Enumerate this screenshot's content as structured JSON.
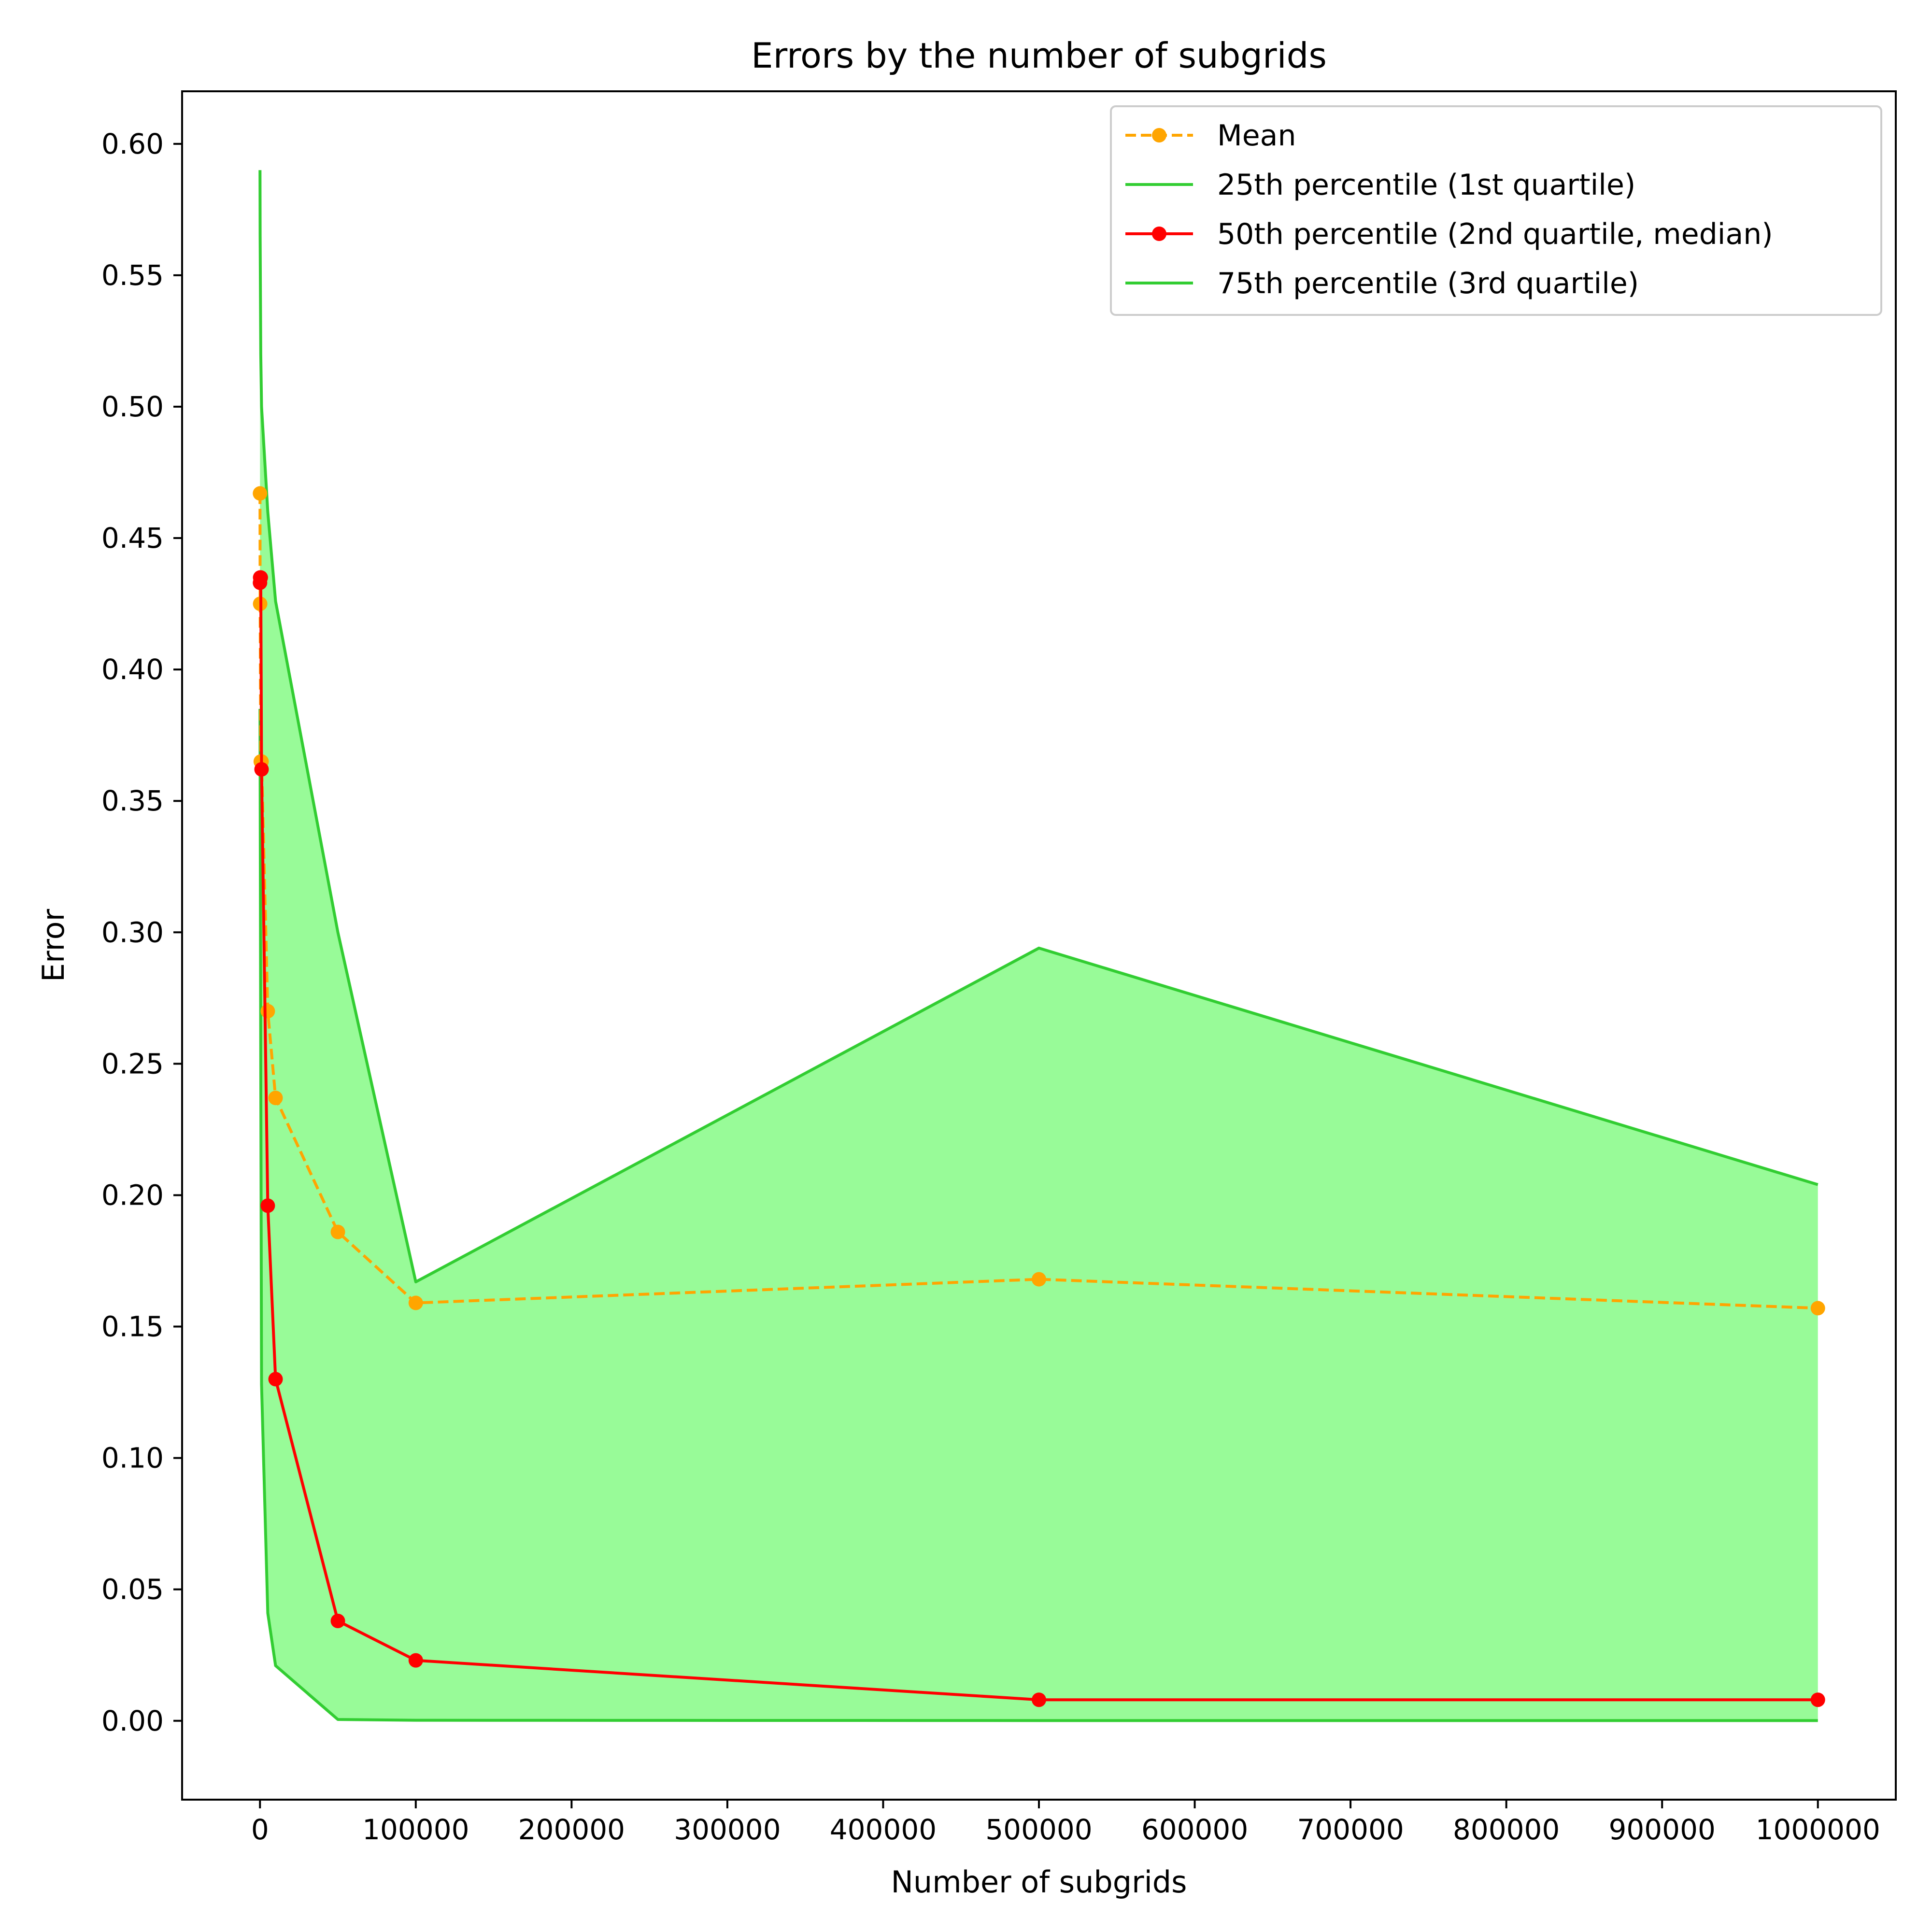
{
  "chart_data": {
    "type": "line",
    "title": "Errors by the number of subgrids",
    "xlabel": "Number of subgrids",
    "ylabel": "Error",
    "xlim": [
      -50000,
      1050000
    ],
    "ylim": [
      -0.03,
      0.62
    ],
    "x_ticks": [
      0,
      100000,
      200000,
      300000,
      400000,
      500000,
      600000,
      700000,
      800000,
      900000,
      1000000
    ],
    "y_ticks": [
      0.0,
      0.05,
      0.1,
      0.15,
      0.2,
      0.25,
      0.3,
      0.35,
      0.4,
      0.45,
      0.5,
      0.55,
      0.6
    ],
    "x": [
      10,
      100,
      500,
      1000,
      5000,
      10000,
      50000,
      100000,
      500000,
      1000000
    ],
    "grid": false,
    "legend_position": "upper-right",
    "series": [
      {
        "name": "Mean",
        "style": "dashed-markers",
        "color": "#ffa500",
        "values": [
          0.467,
          0.425,
          0.365,
          0.365,
          0.27,
          0.237,
          0.186,
          0.159,
          0.168,
          0.157
        ]
      },
      {
        "name": "25th percentile (1st quartile)",
        "style": "line",
        "color": "#32cd32",
        "values": [
          0.385,
          0.36,
          0.25,
          0.128,
          0.041,
          0.021,
          0.0005,
          0.0002,
          0.0001,
          0.0001
        ]
      },
      {
        "name": "50th percentile (2nd quartile, median)",
        "style": "solid-markers",
        "color": "#ff0000",
        "values": [
          0.433,
          0.435,
          0.435,
          0.362,
          0.196,
          0.13,
          0.038,
          0.023,
          0.008,
          0.008
        ]
      },
      {
        "name": "75th percentile (3rd quartile)",
        "style": "line",
        "color": "#32cd32",
        "values": [
          0.59,
          0.565,
          0.52,
          0.5,
          0.46,
          0.426,
          0.3,
          0.167,
          0.294,
          0.204
        ]
      }
    ],
    "fill_between": {
      "lower": "25th percentile (1st quartile)",
      "upper": "75th percentile (3rd quartile)",
      "color": "#98fb98"
    }
  }
}
